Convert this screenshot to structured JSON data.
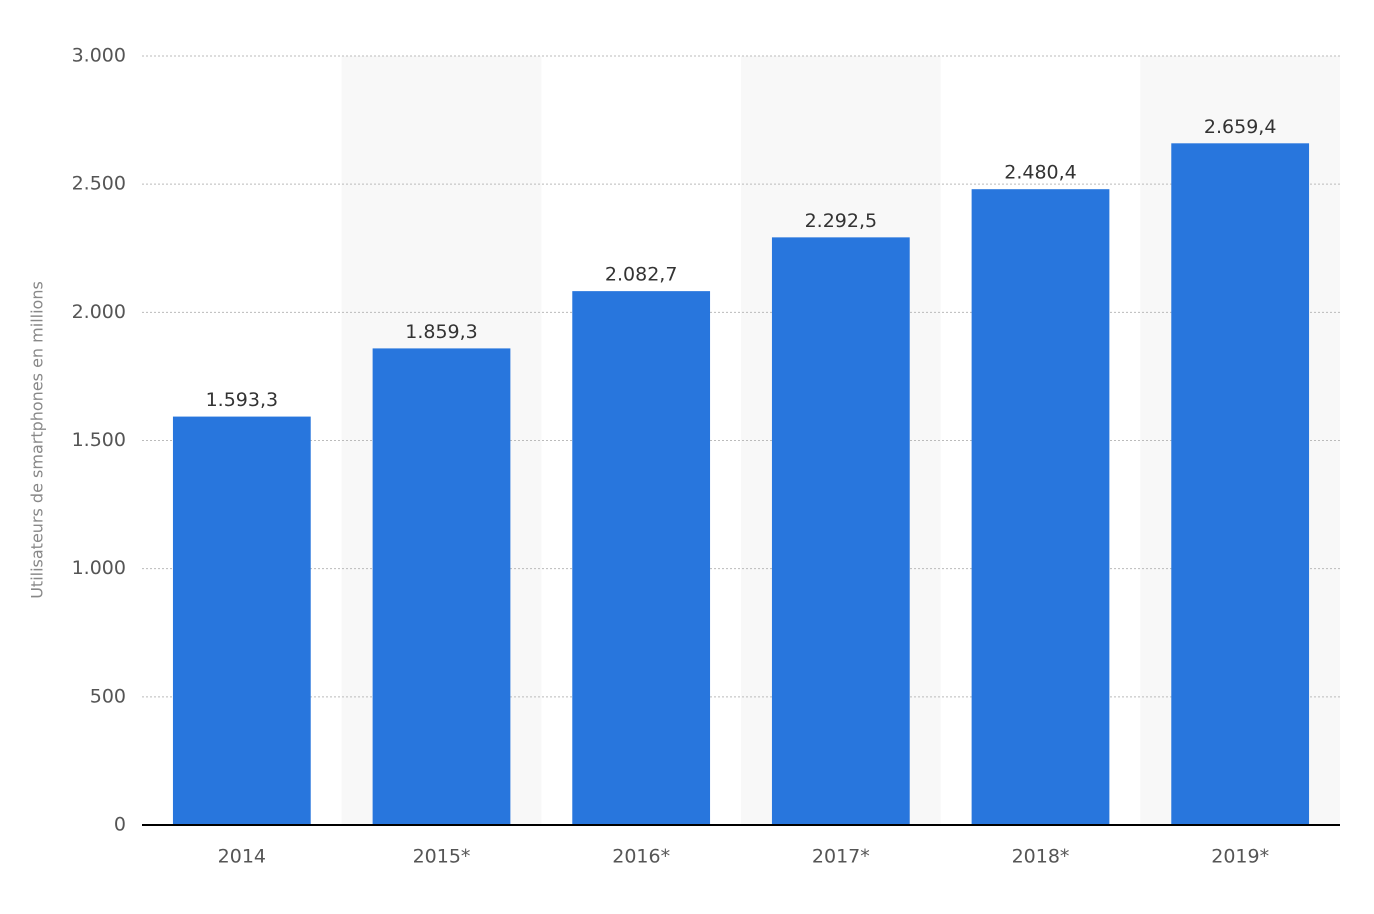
{
  "chart_data": {
    "type": "bar",
    "y_label": "Utilisateurs de smartphones en millions",
    "categories": [
      "2014",
      "2015*",
      "2016*",
      "2017*",
      "2018*",
      "2019*"
    ],
    "values": [
      1593.3,
      1859.3,
      2082.7,
      2292.5,
      2480.4,
      2659.4
    ],
    "value_labels": [
      "1.593,3",
      "1.859,3",
      "2.082,7",
      "2.292,5",
      "2.480,4",
      "2.659,4"
    ],
    "color": "#2876dd",
    "ylim": [
      0,
      3000
    ],
    "yticks": [
      0,
      500,
      {
        "value": 1000,
        "label": "1.000"
      },
      {
        "value": 1500,
        "label": "1.500"
      },
      {
        "value": 2000,
        "label": "2.000"
      },
      {
        "value": 2500,
        "label": "2.500"
      },
      {
        "value": 3000,
        "label": "3.000"
      }
    ],
    "grid": true
  }
}
